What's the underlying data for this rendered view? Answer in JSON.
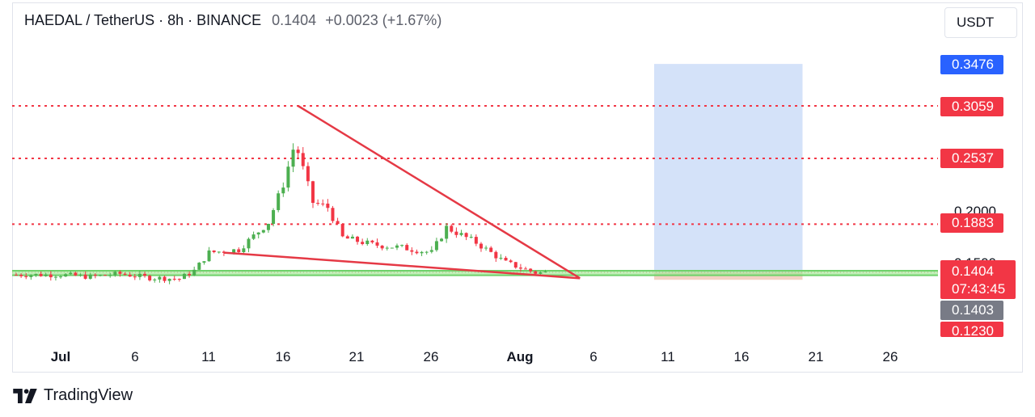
{
  "header": {
    "symbol": "HAEDAL / TetherUS · 8h · BINANCE",
    "price": "0.1404",
    "change": "+0.0023 (+1.67%)"
  },
  "unit_button": "USDT",
  "price_tags": {
    "target": "0.3476",
    "level_1": "0.3059",
    "level_2": "0.2537",
    "level_3": "0.1883",
    "current": "0.1404",
    "countdown": "07:43:45",
    "prev": "0.1403",
    "stop": "0.1230"
  },
  "y_axis_labels": [
    "0.2000",
    "0.1500"
  ],
  "x_axis_labels": [
    {
      "label": "Jul",
      "bold": true
    },
    {
      "label": "6",
      "bold": false
    },
    {
      "label": "11",
      "bold": false
    },
    {
      "label": "16",
      "bold": false
    },
    {
      "label": "21",
      "bold": false
    },
    {
      "label": "26",
      "bold": false
    },
    {
      "label": "Aug",
      "bold": true
    },
    {
      "label": "6",
      "bold": false
    },
    {
      "label": "11",
      "bold": false
    },
    {
      "label": "16",
      "bold": false
    },
    {
      "label": "21",
      "bold": false
    },
    {
      "label": "26",
      "bold": false
    }
  ],
  "footer": {
    "brand": "TradingView"
  },
  "colors": {
    "up": "#089981",
    "green": "#4caf50",
    "down": "#f23645",
    "blue": "#2962ff",
    "zone": "#c5d8f7",
    "support": "#a5e89a"
  },
  "chart_data": {
    "type": "candlestick",
    "interval": "8h",
    "y_scale": "price (USDT)",
    "horizontal_levels": [
      0.3059,
      0.2537,
      0.1883
    ],
    "support_band": [
      0.1375,
      0.142
    ],
    "target_zone": {
      "from": "Aug 10",
      "to": "Aug 20",
      "low": 0.133,
      "high": 0.3476
    },
    "wedge": {
      "upper": [
        [
          "Jul 17",
          0.3059
        ],
        [
          "Aug 5",
          0.1345
        ]
      ],
      "lower": [
        [
          "Jul 12",
          0.16
        ],
        [
          "Aug 5",
          0.1345
        ]
      ]
    },
    "closes": [
      [
        "Jul 1",
        0.138
      ],
      [
        "Jul 3",
        0.136
      ],
      [
        "Jul 5",
        0.139
      ],
      [
        "Jul 7",
        0.135
      ],
      [
        "Jul 9",
        0.134
      ],
      [
        "Jul 10",
        0.142
      ],
      [
        "Jul 11",
        0.16
      ],
      [
        "Jul 13",
        0.163
      ],
      [
        "Jul 15",
        0.19
      ],
      [
        "Jul 16",
        0.228
      ],
      [
        "Jul 17",
        0.28
      ],
      [
        "Jul 17",
        0.26
      ],
      [
        "Jul 18",
        0.21
      ],
      [
        "Jul 19",
        0.205
      ],
      [
        "Jul 20",
        0.175
      ],
      [
        "Jul 22",
        0.168
      ],
      [
        "Jul 24",
        0.165
      ],
      [
        "Jul 26",
        0.16
      ],
      [
        "Jul 27",
        0.185
      ],
      [
        "Jul 29",
        0.17
      ],
      [
        "Jul 31",
        0.15
      ],
      [
        "Aug 2",
        0.14
      ],
      [
        "Aug 3",
        0.1404
      ]
    ]
  }
}
